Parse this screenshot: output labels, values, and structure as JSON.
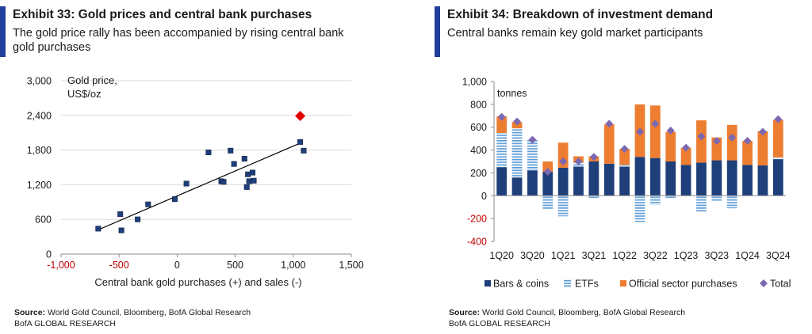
{
  "colors": {
    "accent": "#1f3f9a",
    "navy": "#1f3f7a",
    "etf": "#5b9bd5",
    "orange": "#ed7d31",
    "diamond": "#7b68b0",
    "highlight": "#e00000",
    "axis_text": "#1a1a1a",
    "negative_text": "#c00000",
    "grid": "#d9d9d9"
  },
  "left": {
    "title": "Exhibit 33: Gold prices and central bank purchases",
    "subtitle": "The gold price rally has been accompanied by rising central bank gold purchases",
    "source_label": "Source:",
    "source_text": "World Gold Council, Bloomberg, BofA Global Research",
    "org": "BofA GLOBAL RESEARCH"
  },
  "right": {
    "title": "Exhibit 34: Breakdown of investment demand",
    "subtitle": "Central banks remain key gold market participants",
    "source_label": "Source:",
    "source_text": "World Gold Council, Bloomberg, BofA Global Research",
    "org": "BofA GLOBAL RESEARCH"
  },
  "chart_data": [
    {
      "type": "scatter",
      "ylabel_lines": [
        "Gold price,",
        "US$/oz"
      ],
      "xlabel": "Central bank gold purchases (+) and sales (-)",
      "xlim": [
        -1000,
        1500
      ],
      "ylim": [
        0,
        3000
      ],
      "xticks": [
        -1000,
        -500,
        0,
        500,
        1000,
        1500
      ],
      "xtick_labels": [
        "-1,000",
        "-500",
        "0",
        "500",
        "1,000",
        "1,500"
      ],
      "yticks": [
        0,
        600,
        1200,
        1800,
        2400,
        3000
      ],
      "ytick_labels": [
        "0",
        "600",
        "1,200",
        "1,800",
        "2,400",
        "3,000"
      ],
      "grid": "horizontal",
      "points": [
        {
          "x": -680,
          "y": 440
        },
        {
          "x": -480,
          "y": 410
        },
        {
          "x": -490,
          "y": 690
        },
        {
          "x": -340,
          "y": 600
        },
        {
          "x": -250,
          "y": 860
        },
        {
          "x": -20,
          "y": 950
        },
        {
          "x": 80,
          "y": 1220
        },
        {
          "x": 270,
          "y": 1760
        },
        {
          "x": 380,
          "y": 1260
        },
        {
          "x": 400,
          "y": 1250
        },
        {
          "x": 460,
          "y": 1790
        },
        {
          "x": 490,
          "y": 1560
        },
        {
          "x": 580,
          "y": 1650
        },
        {
          "x": 600,
          "y": 1160
        },
        {
          "x": 610,
          "y": 1380
        },
        {
          "x": 620,
          "y": 1260
        },
        {
          "x": 650,
          "y": 1410
        },
        {
          "x": 660,
          "y": 1270
        },
        {
          "x": 1060,
          "y": 1940
        },
        {
          "x": 1090,
          "y": 1790
        }
      ],
      "highlight_point": {
        "x": 1060,
        "y": 2390
      },
      "trendline": {
        "x1": -680,
        "y1": 420,
        "x2": 1060,
        "y2": 1920
      }
    },
    {
      "type": "bar",
      "stacked": true,
      "ylabel": "tonnes",
      "ylim": [
        -400,
        1000
      ],
      "yticks": [
        -400,
        -200,
        0,
        200,
        400,
        600,
        800,
        1000
      ],
      "ytick_labels": [
        "-400",
        "-200",
        "0",
        "200",
        "400",
        "600",
        "800",
        "1,000"
      ],
      "categories": [
        "1Q20",
        "2Q20",
        "3Q20",
        "4Q20",
        "1Q21",
        "2Q21",
        "3Q21",
        "4Q21",
        "1Q22",
        "2Q22",
        "3Q22",
        "4Q22",
        "1Q23",
        "2Q23",
        "3Q23",
        "4Q23",
        "1Q24",
        "2Q24",
        "3Q24"
      ],
      "xtick_labels": [
        "1Q20",
        "3Q20",
        "1Q21",
        "3Q21",
        "1Q22",
        "3Q22",
        "1Q23",
        "3Q23",
        "1Q24",
        "3Q24"
      ],
      "series": [
        {
          "name": "Bars & coins",
          "values": [
            250,
            160,
            220,
            210,
            245,
            255,
            300,
            280,
            255,
            340,
            330,
            300,
            270,
            290,
            310,
            310,
            270,
            265,
            320
          ]
        },
        {
          "name": "ETFs",
          "values": [
            300,
            430,
            270,
            -120,
            -180,
            35,
            -20,
            0,
            15,
            -230,
            -80,
            -20,
            0,
            -140,
            -50,
            -110,
            0,
            0,
            15
          ]
        },
        {
          "name": "Official sector purchases",
          "values": [
            145,
            55,
            0,
            90,
            220,
            55,
            45,
            345,
            140,
            460,
            460,
            260,
            150,
            370,
            200,
            310,
            210,
            300,
            330
          ]
        }
      ],
      "total": {
        "name": "Total",
        "values": [
          690,
          650,
          490,
          210,
          300,
          300,
          340,
          630,
          410,
          560,
          630,
          570,
          420,
          520,
          480,
          510,
          480,
          560,
          670
        ]
      },
      "legend": [
        "Bars & coins",
        "ETFs",
        "Official sector purchases",
        "Total"
      ]
    }
  ]
}
